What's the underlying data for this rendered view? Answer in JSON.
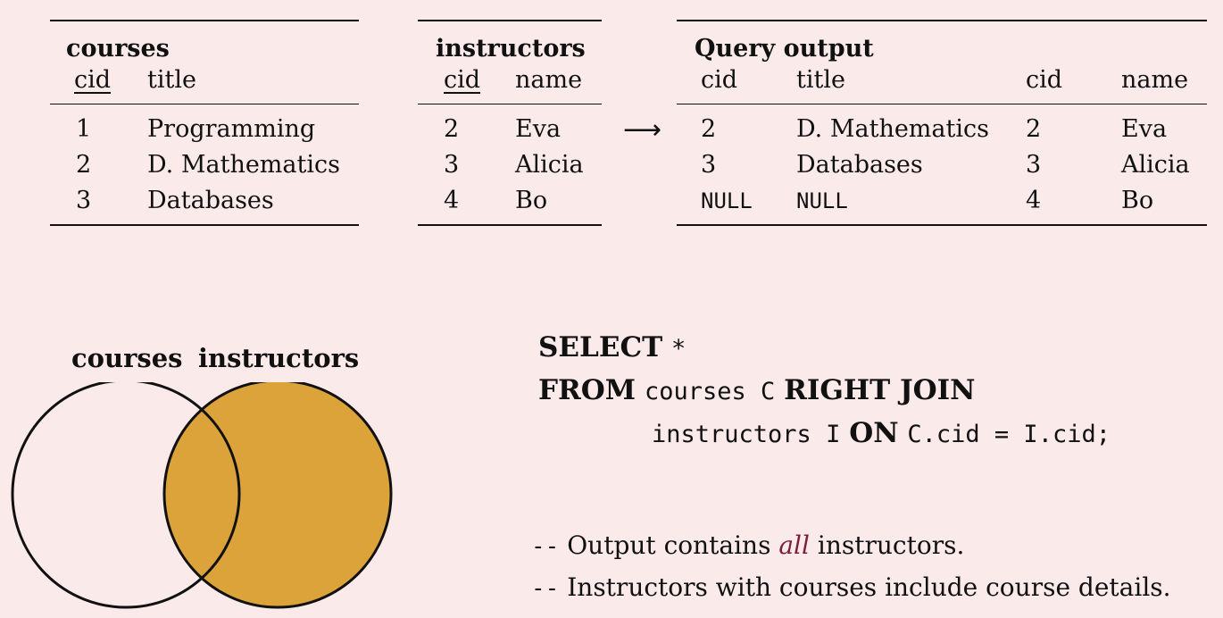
{
  "courses": {
    "caption": "courses",
    "headers": [
      "cid",
      "title"
    ],
    "rows": [
      [
        "1",
        "Programming"
      ],
      [
        "2",
        "D. Mathematics"
      ],
      [
        "3",
        "Databases"
      ]
    ]
  },
  "instructors": {
    "caption": "instructors",
    "headers": [
      "cid",
      "name"
    ],
    "rows": [
      [
        "2",
        "Eva"
      ],
      [
        "3",
        "Alicia"
      ],
      [
        "4",
        "Bo"
      ]
    ]
  },
  "arrow": "⟶",
  "output": {
    "caption": "Query output",
    "headers": [
      "cid",
      "title",
      "cid",
      "name"
    ],
    "rows": [
      [
        "2",
        "D. Mathematics",
        "2",
        "Eva"
      ],
      [
        "3",
        "Databases",
        "3",
        "Alicia"
      ],
      [
        "NULL",
        "NULL",
        "4",
        "Bo"
      ]
    ]
  },
  "venn": {
    "left_label": "courses",
    "right_label": "instructors",
    "fill_color": "#dba33a",
    "left_fill": "#ffffff"
  },
  "sql": {
    "kw_select": "SELECT",
    "star": "*",
    "kw_from": "FROM",
    "from_table": "courses C",
    "kw_right_join": "RIGHT JOIN",
    "join_table": "instructors I",
    "kw_on": "ON",
    "condition": "C.cid = I.cid;"
  },
  "comments": {
    "dash": "--",
    "line1_pre": "Output contains",
    "line1_emph": "all",
    "line1_post": "instructors.",
    "line2": "Instructors with courses include course details."
  }
}
